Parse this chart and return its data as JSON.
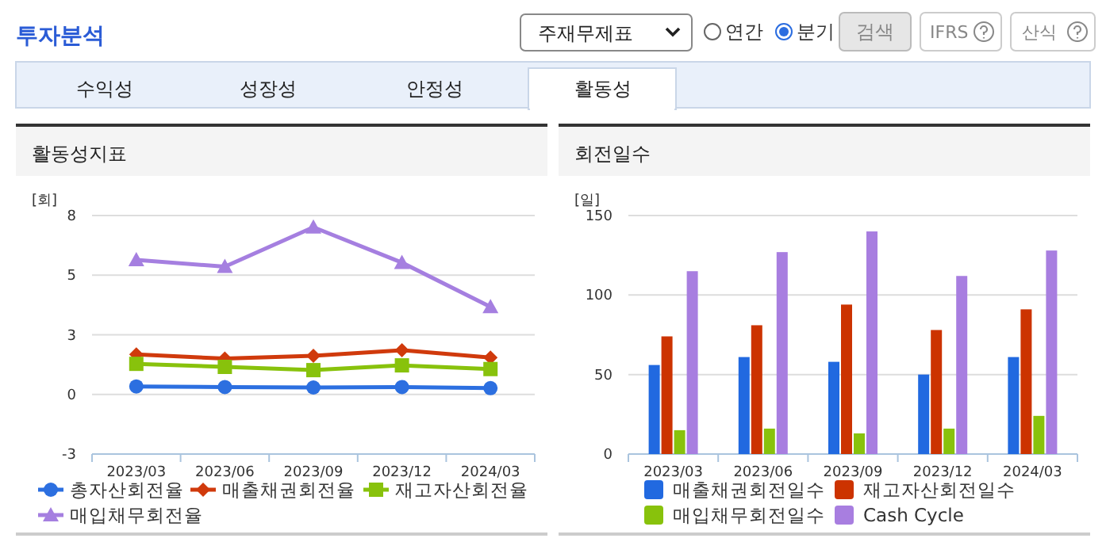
{
  "chart_data": [
    {
      "type": "other",
      "title": "투자분석",
      "annotations": [
        "주재무제표",
        "연간",
        "분기",
        "검색",
        "IFRS",
        "산식",
        "수익성",
        "성장성",
        "안정성",
        "활동성"
      ]
    },
    {
      "type": "line",
      "title": "활동성지표",
      "ylabel": "[회]",
      "categories": [
        "2023/03",
        "2023/06",
        "2023/09",
        "2023/12",
        "2024/03"
      ],
      "series": [
        {
          "name": "총자산회전율",
          "color": "#2c6fe0",
          "marker": "circle",
          "values": [
            0.37,
            0.34,
            0.32,
            0.34,
            0.29
          ]
        },
        {
          "name": "매출채권회전율",
          "color": "#d03a0c",
          "marker": "diamond",
          "values": [
            1.85,
            1.65,
            1.78,
            2.04,
            1.7
          ]
        },
        {
          "name": "재고자산회전율",
          "color": "#88c20c",
          "marker": "square",
          "values": [
            1.41,
            1.27,
            1.12,
            1.34,
            1.17
          ]
        },
        {
          "name": "매입채무회전율",
          "color": "#a57fe0",
          "marker": "triangle",
          "values": [
            6.2,
            5.89,
            7.71,
            6.08,
            4.04
          ]
        }
      ],
      "ylim": [
        -2.75,
        8.25
      ],
      "yticks": [
        {
          "value": -2.75,
          "label": "-3"
        },
        {
          "value": 0,
          "label": "0"
        },
        {
          "value": 2.75,
          "label": "3"
        },
        {
          "value": 5.5,
          "label": "5"
        },
        {
          "value": 8.25,
          "label": "8"
        }
      ],
      "grid": "y",
      "legend": "bottom"
    },
    {
      "type": "bar",
      "title": "회전일수",
      "ylabel": "[일]",
      "categories": [
        "2023/03",
        "2023/06",
        "2023/09",
        "2023/12",
        "2024/03"
      ],
      "series": [
        {
          "name": "매출채권회전일수",
          "color": "#2169e0",
          "values": [
            56,
            61,
            58,
            50,
            61
          ]
        },
        {
          "name": "재고자산회전일수",
          "color": "#cc3300",
          "values": [
            74,
            81,
            94,
            78,
            91
          ]
        },
        {
          "name": "매입채무회전일수",
          "color": "#88c20c",
          "values": [
            15,
            16,
            13,
            16,
            24
          ]
        },
        {
          "name": "Cash Cycle",
          "color": "#a87ee0",
          "values": [
            115,
            127,
            140,
            112,
            128
          ]
        }
      ],
      "ylim": [
        0,
        150
      ],
      "yticks": [
        0,
        50,
        100,
        150
      ],
      "grid": "y",
      "legend": "bottom"
    }
  ]
}
